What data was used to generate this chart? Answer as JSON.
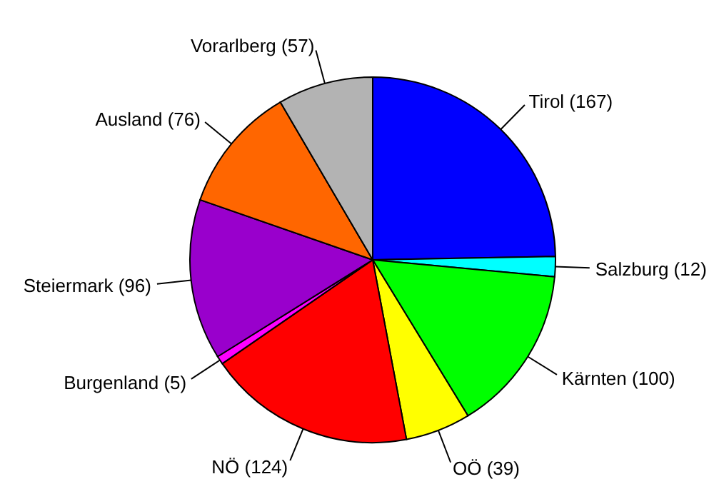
{
  "chart_data": {
    "type": "pie",
    "categories": [
      "Tirol (167)",
      "Salzburg (12)",
      "Kärnten (100)",
      "OÖ (39)",
      "NÖ (124)",
      "Burgenland (5)",
      "Steiermark (96)",
      "Ausland (76)",
      "Vorarlberg (57)"
    ],
    "values": [
      167,
      12,
      100,
      39,
      124,
      5,
      96,
      76,
      57
    ],
    "colors": [
      "#0000ff",
      "#00ffff",
      "#00ff00",
      "#ffff00",
      "#ff0000",
      "#ff00ff",
      "#9900cc",
      "#ff6600",
      "#b3b3b3"
    ]
  }
}
